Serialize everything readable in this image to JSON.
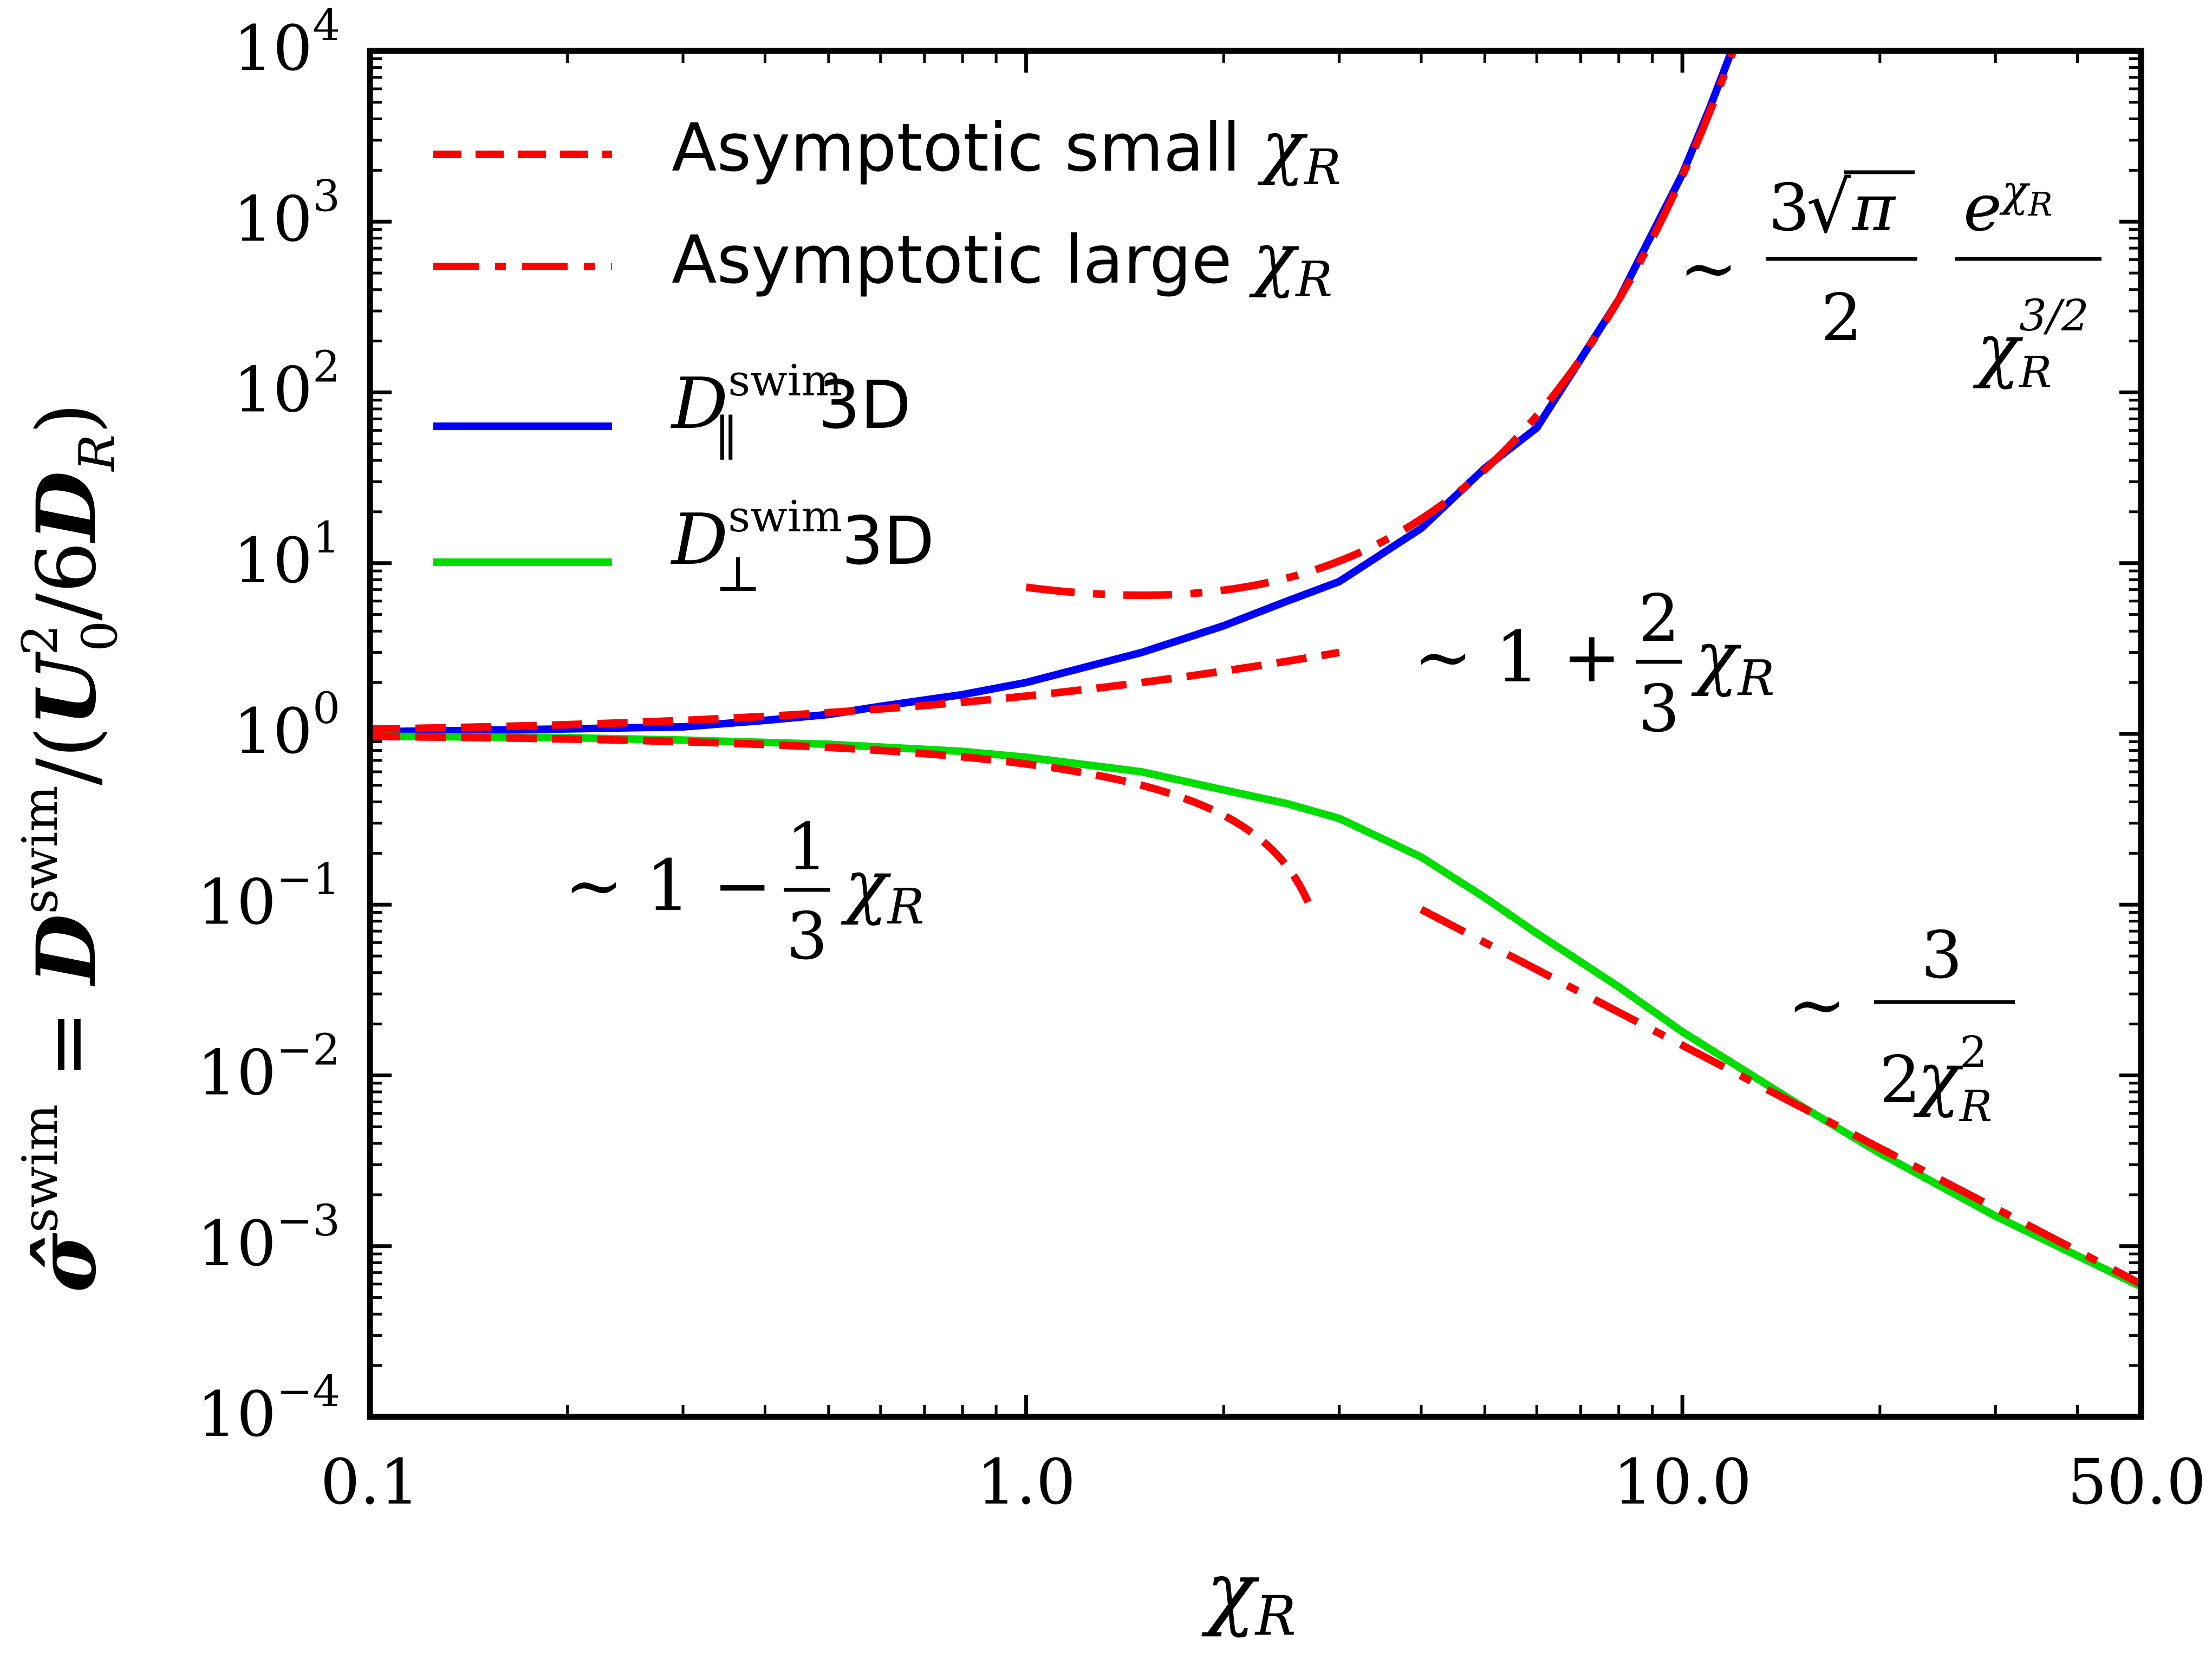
{
  "chart_data": {
    "type": "line",
    "xscale": "log",
    "yscale": "log",
    "xlim": [
      0.1,
      50.0
    ],
    "ylim": [
      0.0001,
      10000
    ],
    "x_ticks": [
      {
        "value": 0.1,
        "label": "0.1"
      },
      {
        "value": 1.0,
        "label": "1.0"
      },
      {
        "value": 10.0,
        "label": "10.0"
      },
      {
        "value": 50.0,
        "label": "50.0"
      }
    ],
    "y_ticks": [
      {
        "value": 0.0001,
        "base": "10",
        "exp": "−4"
      },
      {
        "value": 0.001,
        "base": "10",
        "exp": "−3"
      },
      {
        "value": 0.01,
        "base": "10",
        "exp": "−2"
      },
      {
        "value": 0.1,
        "base": "10",
        "exp": "−1"
      },
      {
        "value": 1,
        "base": "10",
        "exp": "0"
      },
      {
        "value": 10,
        "base": "10",
        "exp": "1"
      },
      {
        "value": 100,
        "base": "10",
        "exp": "2"
      },
      {
        "value": 1000,
        "base": "10",
        "exp": "3"
      },
      {
        "value": 10000,
        "base": "10",
        "exp": "4"
      }
    ],
    "xlabel": {
      "chi": "χ",
      "sub": "R"
    },
    "ylabel": {
      "sigma": "σ̂",
      "sigma_sup": "swim",
      "eq": " = ",
      "D": "D",
      "D_sup": "swim",
      "slash_open": "/(",
      "U": "U",
      "U_sup": "2",
      "U_sub": "0",
      "six": "/6",
      "DR": "D",
      "DR_sub": "R",
      "close": ")"
    },
    "legend": {
      "position": "top-left",
      "entries": [
        {
          "key": "small",
          "text": "Asymptotic small ",
          "sym": "χ",
          "sub": "R",
          "color": "#ff0000",
          "style": "dashed"
        },
        {
          "key": "large",
          "text": "Asymptotic large ",
          "sym": "χ",
          "sub": "R",
          "color": "#ff0000",
          "style": "dashdot"
        },
        {
          "key": "par",
          "sym": "D",
          "sup": "swim",
          "sub": "∥",
          "text": " 3D",
          "color": "#0000ff",
          "style": "solid"
        },
        {
          "key": "perp",
          "sym": "D",
          "sup": "swim",
          "sub": "⊥",
          "text": " 3D",
          "color": "#00dd00",
          "style": "solid"
        }
      ]
    },
    "series": [
      {
        "name": "D_par_swim_3D",
        "color": "#0000ff",
        "style": "solid",
        "x": [
          0.1,
          0.15,
          0.2,
          0.3,
          0.4,
          0.5,
          0.6,
          0.8,
          1.0,
          1.2,
          1.5,
          2.0,
          2.5,
          3.0,
          4.0,
          5.0,
          6.0,
          8.0,
          10.0,
          11.0,
          12.0
        ],
        "y": [
          1.03,
          1.05,
          1.07,
          1.1,
          1.2,
          1.3,
          1.45,
          1.7,
          2.0,
          2.4,
          3.0,
          4.3,
          6.0,
          7.8,
          16,
          36,
          62,
          350,
          1900,
          4600,
          11000
        ]
      },
      {
        "name": "D_perp_swim_3D",
        "color": "#00dd00",
        "style": "solid",
        "x": [
          0.1,
          0.2,
          0.3,
          0.5,
          0.8,
          1.0,
          1.5,
          2.0,
          2.5,
          3.0,
          4.0,
          5.0,
          6.0,
          8.0,
          10.0,
          15.0,
          20.0,
          30.0,
          50.0
        ],
        "y": [
          0.97,
          0.95,
          0.92,
          0.87,
          0.79,
          0.73,
          0.6,
          0.47,
          0.39,
          0.32,
          0.19,
          0.11,
          0.068,
          0.033,
          0.018,
          0.0068,
          0.0035,
          0.0015,
          0.00058
        ]
      },
      {
        "name": "Asymptotic small chi_R (parallel)",
        "color": "#ff0000",
        "style": "dashed",
        "formula": "1 + 2/3 χR",
        "x": [
          0.1,
          3.0
        ],
        "y_function": "1 + (2/3)*x"
      },
      {
        "name": "Asymptotic small chi_R (perpendicular)",
        "color": "#ff0000",
        "style": "dashed",
        "formula": "1 − 1/3 χR",
        "x": [
          0.1,
          2.7
        ],
        "y_function": "1 - (1/3)*x"
      },
      {
        "name": "Asymptotic large chi_R (parallel)",
        "color": "#ff0000",
        "style": "dashdot",
        "formula": "3√π/2 e^χR / χR^(3/2)",
        "x": [
          1.0,
          12.0
        ],
        "y_function": "3*sqrt(pi)/2*exp(x)/x^1.5"
      },
      {
        "name": "Asymptotic large chi_R (perpendicular)",
        "color": "#ff0000",
        "style": "dashdot",
        "formula": "3/(2χR²)",
        "x": [
          4.0,
          50.0
        ],
        "y_function": "3/(2*x^2)"
      }
    ],
    "annotations": {
      "par_small": {
        "tilde": "∼ 1 + ",
        "num": "2",
        "den": "3",
        "sym": "χ",
        "sub": "R"
      },
      "perp_small": {
        "tilde": "∼ 1 − ",
        "num": "1",
        "den": "3",
        "sym": "χ",
        "sub": "R"
      },
      "par_large": {
        "tilde": "∼",
        "num1": "3",
        "sqrt": "√",
        "pi": "π",
        "den1": "2",
        "e": "e",
        "e_sup_sym": "χ",
        "e_sup_sub": "R",
        "den2_sym": "χ",
        "den2_sup": "3/2",
        "den2_sub": "R"
      },
      "perp_large": {
        "tilde": "∼",
        "num": "3",
        "den_pre": "2",
        "den_sym": "χ",
        "den_sup": "2",
        "den_sub": "R"
      }
    }
  }
}
